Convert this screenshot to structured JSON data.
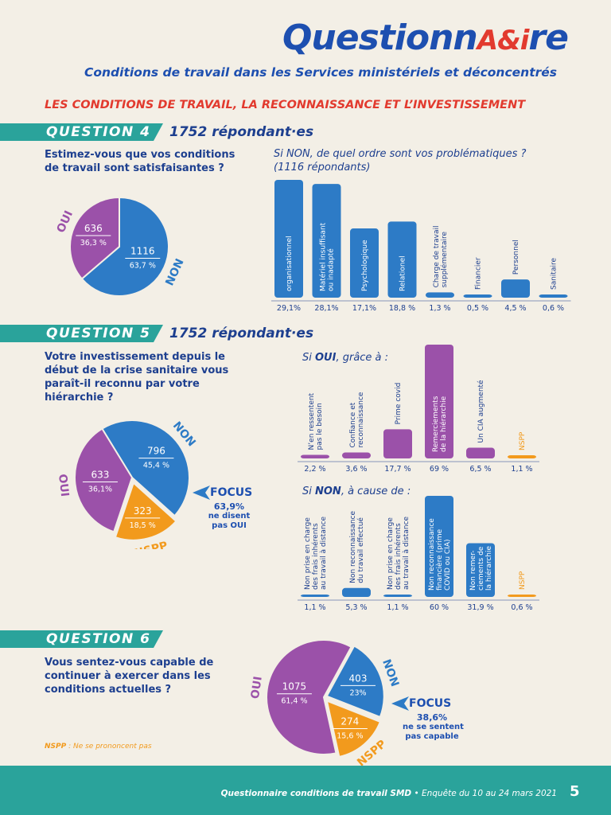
{
  "header": {
    "logo_main": "Questionn",
    "logo_accent": "A&i",
    "logo_end": "re",
    "subtitle": "Conditions de travail dans les Services ministériels et déconcentrés",
    "section_title": "LES CONDITIONS DE TRAVAIL, LA RECONNAISSANCE ET L’INVESTISSEMENT"
  },
  "q4": {
    "label": "QUESTION 4",
    "count": "1752 répondant·es",
    "question": "Estimez-vous que vos conditions de travail sont satisfaisantes ?",
    "bars_title": "Si NON, de quel ordre sont vos problématiques ?",
    "bars_subtitle": "(1116 répondants)"
  },
  "q5": {
    "label": "QUESTION 5",
    "count": "1752 répondant·es",
    "question": "Votre investissement depuis le début de la crise sanitaire vous paraît-il reconnu par votre hiérarchie ?",
    "oui_title_prefix": "Si ",
    "oui_title_strong": "OUI",
    "oui_title_suffix": ", grâce à :",
    "non_title_prefix": "Si ",
    "non_title_strong": "NON",
    "non_title_suffix": ", à cause de :",
    "focus_word": "FOCUS",
    "focus_pct": "63,9%",
    "focus_text": [
      "ne disent",
      "pas OUI"
    ]
  },
  "q6": {
    "label": "QUESTION 6",
    "question": "Vous sentez-vous capable de continuer à exercer dans les conditions actuelles ?",
    "focus_word": "FOCUS",
    "focus_pct": "38,6%",
    "focus_text": [
      "ne se sentent",
      "pas capable"
    ]
  },
  "note": {
    "abbr": "NSPP",
    "text": " : Ne se prononcent pas"
  },
  "footer": {
    "text_bold": "Questionnaire conditions de travail SMD",
    "text_rest": " • Enquête du 10 au 24 mars 2021",
    "page": "5"
  },
  "colors": {
    "blue": "#2d7bc6",
    "purple": "#9b51a9",
    "orange": "#f29a1d",
    "teal": "#2aa39b",
    "navy": "#1d3f8f",
    "red": "#e23a2e"
  },
  "chart_data": [
    {
      "type": "pie",
      "id": "q4-pie",
      "slices": [
        {
          "name": "OUI",
          "count": "636",
          "pct": "36,3 %",
          "value": 36.3,
          "color": "#9b51a9"
        },
        {
          "name": "NON",
          "count": "1116",
          "pct": "63,7 %",
          "value": 63.7,
          "color": "#2d7bc6"
        }
      ]
    },
    {
      "type": "bar",
      "id": "q4-bars",
      "color": "#2d7bc6",
      "categories": [
        [
          "organisationnel"
        ],
        [
          "Matériel insuffisant",
          "ou inadapté"
        ],
        [
          "Psychologique"
        ],
        [
          "Relationel"
        ],
        [
          "Charge de travail",
          "supplémentaire"
        ],
        [
          "Financier"
        ],
        [
          "Personnel"
        ],
        [
          "Sanitaire"
        ]
      ],
      "labels": [
        "29,1%",
        "28,1%",
        "17,1%",
        "18,8 %",
        "1,3 %",
        "0,5 %",
        "4,5 %",
        "0,6 %"
      ],
      "values": [
        29.1,
        28.1,
        17.1,
        18.8,
        1.3,
        0.5,
        4.5,
        0.6
      ]
    },
    {
      "type": "pie",
      "id": "q5-pie",
      "slices": [
        {
          "name": "NON",
          "count": "796",
          "pct": "45,4 %",
          "value": 45.4,
          "color": "#2d7bc6"
        },
        {
          "name": "NSPP",
          "count": "323",
          "pct": "18,5 %",
          "value": 18.5,
          "color": "#f29a1d"
        },
        {
          "name": "OUI",
          "count": "633",
          "pct": "36,1%",
          "value": 36.1,
          "color": "#9b51a9"
        }
      ]
    },
    {
      "type": "bar",
      "id": "q5-oui-bars",
      "categories": [
        [
          "N’en ressentent",
          "pas le besoin"
        ],
        [
          "Confiance et",
          "reconnaissance"
        ],
        [
          "Prime covid"
        ],
        [
          "Remerciements",
          "de la hiérarchie"
        ],
        [
          "Un CIA augmenté"
        ],
        [
          "NSPP"
        ]
      ],
      "labels": [
        "2,2 %",
        "3,6 %",
        "17,7 %",
        "69 %",
        "6,5 %",
        "1,1 %"
      ],
      "values": [
        2.2,
        3.6,
        17.7,
        69,
        6.5,
        1.1
      ],
      "colors": [
        "#9b51a9",
        "#9b51a9",
        "#9b51a9",
        "#9b51a9",
        "#9b51a9",
        "#f29a1d"
      ]
    },
    {
      "type": "bar",
      "id": "q5-non-bars",
      "categories": [
        [
          "Non prise en charge",
          "des frais inhérents",
          "au travail à distance"
        ],
        [
          "Non reconnaissance",
          "du travail effectué"
        ],
        [
          "Non prise en charge",
          "des frais inhérents",
          "au travail à distance"
        ],
        [
          "Non reconnaissance",
          "financière (prime",
          "COVID ou CIA)"
        ],
        [
          "Non remer-",
          "ciements de",
          "la hiérarchie"
        ],
        [
          "NSPP"
        ]
      ],
      "labels": [
        "1,1 %",
        "5,3 %",
        "1,1 %",
        "60 %",
        "31,9 %",
        "0,6 %"
      ],
      "values": [
        1.1,
        5.3,
        1.1,
        60,
        31.9,
        0.6
      ],
      "colors": [
        "#2d7bc6",
        "#2d7bc6",
        "#2d7bc6",
        "#2d7bc6",
        "#2d7bc6",
        "#f29a1d"
      ]
    },
    {
      "type": "pie",
      "id": "q6-pie",
      "slices": [
        {
          "name": "NON",
          "count": "403",
          "pct": "23%",
          "value": 23,
          "color": "#2d7bc6"
        },
        {
          "name": "NSPP",
          "count": "274",
          "pct": "15,6 %",
          "value": 15.6,
          "color": "#f29a1d"
        },
        {
          "name": "OUI",
          "count": "1075",
          "pct": "61,4 %",
          "value": 61.4,
          "color": "#9b51a9"
        }
      ]
    }
  ]
}
